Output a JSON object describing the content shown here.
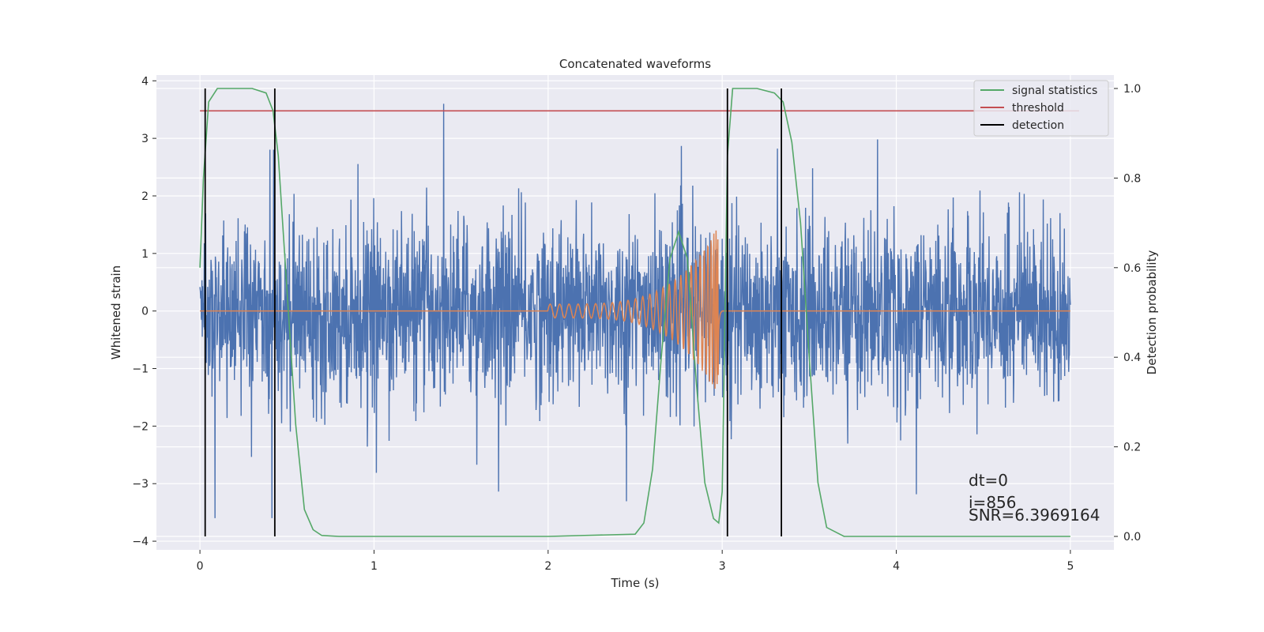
{
  "figure": {
    "title": "Concatenated waveforms",
    "xlabel": "Time (s)",
    "ylabel_left": "Whitened strain",
    "ylabel_right": "Detection probability",
    "annotations": [
      "dt=0",
      "i=856",
      "SNR=6.3969164"
    ]
  },
  "chart_data": {
    "type": "line",
    "title": "Concatenated waveforms",
    "xlabel": "Time (s)",
    "ylabel": "Whitened strain",
    "y2label": "Detection probability",
    "xlim": [
      -0.25,
      5.25
    ],
    "ylim": [
      -4.15,
      4.1
    ],
    "y2lim": [
      -0.03,
      1.03
    ],
    "x_ticks": [
      0,
      1,
      2,
      3,
      4,
      5
    ],
    "y_ticks": [
      -4,
      -3,
      -2,
      -1,
      0,
      1,
      2,
      3,
      4
    ],
    "y2_ticks": [
      0.0,
      0.2,
      0.4,
      0.6,
      0.8,
      1.0
    ],
    "grid": true,
    "background": "#eaeaf2",
    "legend_position": "top-right",
    "legend": [
      {
        "label": "signal statistics",
        "color": "#55a868"
      },
      {
        "label": "threshold",
        "color": "#c44e52"
      },
      {
        "label": "detection",
        "color": "#000000"
      }
    ],
    "series": [
      {
        "name": "noise",
        "axis": "left",
        "color": "#4c72b0",
        "kind": "noise",
        "x_range": [
          0,
          5
        ],
        "typical_amplitude": 0.75,
        "max_abs": 3.6
      },
      {
        "name": "chirp",
        "axis": "left",
        "color": "#dd8452",
        "kind": "chirp",
        "x_range": [
          0,
          5
        ],
        "start": 2.0,
        "merger": 2.98,
        "peak_amplitude": 1.5
      },
      {
        "name": "signal statistics",
        "axis": "right",
        "color": "#55a868",
        "x": [
          0,
          0.02,
          0.05,
          0.1,
          0.2,
          0.3,
          0.38,
          0.42,
          0.45,
          0.5,
          0.55,
          0.6,
          0.65,
          0.7,
          0.8,
          1.0,
          1.5,
          2.0,
          2.5,
          2.55,
          2.6,
          2.65,
          2.7,
          2.75,
          2.8,
          2.85,
          2.9,
          2.95,
          2.98,
          3.0,
          3.03,
          3.06,
          3.1,
          3.2,
          3.3,
          3.35,
          3.4,
          3.45,
          3.5,
          3.55,
          3.6,
          3.7,
          4.0,
          4.5,
          5.0
        ],
        "y": [
          0.6,
          0.8,
          0.97,
          1.0,
          1.0,
          1.0,
          0.99,
          0.95,
          0.85,
          0.55,
          0.25,
          0.06,
          0.015,
          0.002,
          0.0,
          0.0,
          0.0,
          0.0,
          0.005,
          0.03,
          0.15,
          0.4,
          0.62,
          0.68,
          0.62,
          0.35,
          0.12,
          0.04,
          0.03,
          0.1,
          0.85,
          1.0,
          1.0,
          1.0,
          0.99,
          0.97,
          0.88,
          0.7,
          0.4,
          0.12,
          0.02,
          0.0,
          0.0,
          0.0,
          0.0
        ]
      },
      {
        "name": "threshold",
        "axis": "right",
        "color": "#c44e52",
        "x": [
          0,
          5.05
        ],
        "y": [
          0.95,
          0.95
        ]
      }
    ],
    "detections": [
      0.03,
      0.43,
      3.03,
      3.34
    ]
  }
}
